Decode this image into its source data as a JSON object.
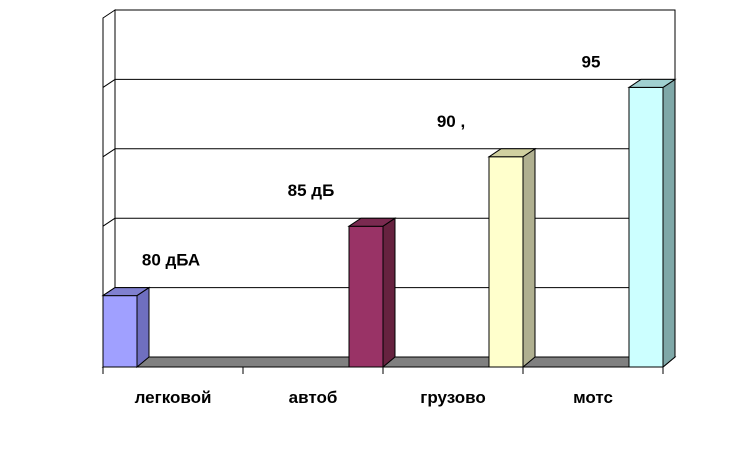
{
  "chart_data": {
    "type": "bar",
    "categories": [
      "легковой",
      "автоб",
      "грузово",
      "мотс"
    ],
    "values": [
      80,
      85,
      90,
      95
    ],
    "data_labels": [
      "80 дБА",
      "85 дБ",
      "90 ,",
      "95"
    ],
    "colors": {
      "bars_front": [
        "#A0A0FF",
        "#993366",
        "#FFFFCC",
        "#CCFFFF"
      ],
      "bars_side": [
        "#6F6FC0",
        "#66223F",
        "#B0B090",
        "#7FA8A8"
      ],
      "bars_top": [
        "#8080D0",
        "#7A2A50",
        "#D0D0A0",
        "#A0D0D0"
      ]
    },
    "ylim": [
      75,
      100
    ],
    "grid": true,
    "legend": "none"
  }
}
